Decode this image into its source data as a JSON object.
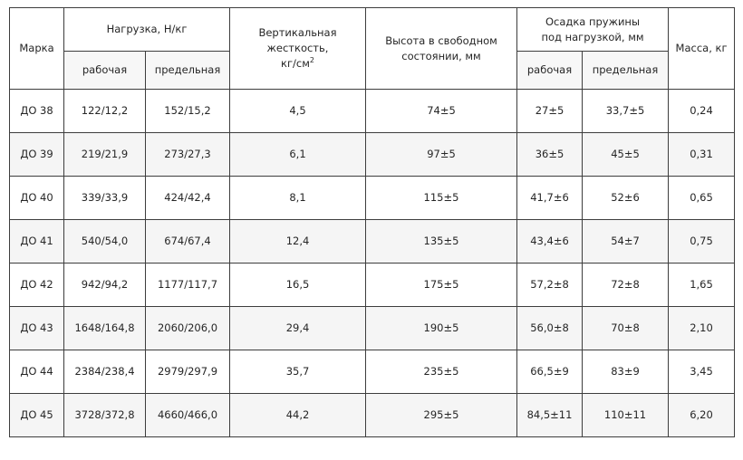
{
  "colors": {
    "border": "#3d3d3d",
    "alt_row_bg": "#f5f5f5",
    "subheader_bg": "#f7f7f7",
    "text": "#262626"
  },
  "table": {
    "header": {
      "marka": "Марка",
      "load": {
        "title": "Нагрузка, Н/кг",
        "sub": [
          "рабочая",
          "предельная"
        ]
      },
      "stiffness_lines": [
        "Вертикальная",
        "жесткость,",
        "кг/см"
      ],
      "stiffness_sup": "2",
      "height_lines": [
        "Высота в свободном",
        "состоянии, мм"
      ],
      "draft": {
        "title_lines": [
          "Осадка пружины",
          "под нагрузкой, мм"
        ],
        "sub": [
          "рабочая",
          "предельная"
        ]
      },
      "mass": "Масса, кг"
    },
    "rows": [
      [
        "ДО 38",
        "122/12,2",
        "152/15,2",
        "4,5",
        "74±5",
        "27±5",
        "33,7±5",
        "0,24"
      ],
      [
        "ДО 39",
        "219/21,9",
        "273/27,3",
        "6,1",
        "97±5",
        "36±5",
        "45±5",
        "0,31"
      ],
      [
        "ДО 40",
        "339/33,9",
        "424/42,4",
        "8,1",
        "115±5",
        "41,7±6",
        "52±6",
        "0,65"
      ],
      [
        "ДО 41",
        "540/54,0",
        "674/67,4",
        "12,4",
        "135±5",
        "43,4±6",
        "54±7",
        "0,75"
      ],
      [
        "ДО 42",
        "942/94,2",
        "1177/117,7",
        "16,5",
        "175±5",
        "57,2±8",
        "72±8",
        "1,65"
      ],
      [
        "ДО 43",
        "1648/164,8",
        "2060/206,0",
        "29,4",
        "190±5",
        "56,0±8",
        "70±8",
        "2,10"
      ],
      [
        "ДО 44",
        "2384/238,4",
        "2979/297,9",
        "35,7",
        "235±5",
        "66,5±9",
        "83±9",
        "3,45"
      ],
      [
        "ДО 45",
        "3728/372,8",
        "4660/466,0",
        "44,2",
        "295±5",
        "84,5±11",
        "110±11",
        "6,20"
      ]
    ]
  }
}
